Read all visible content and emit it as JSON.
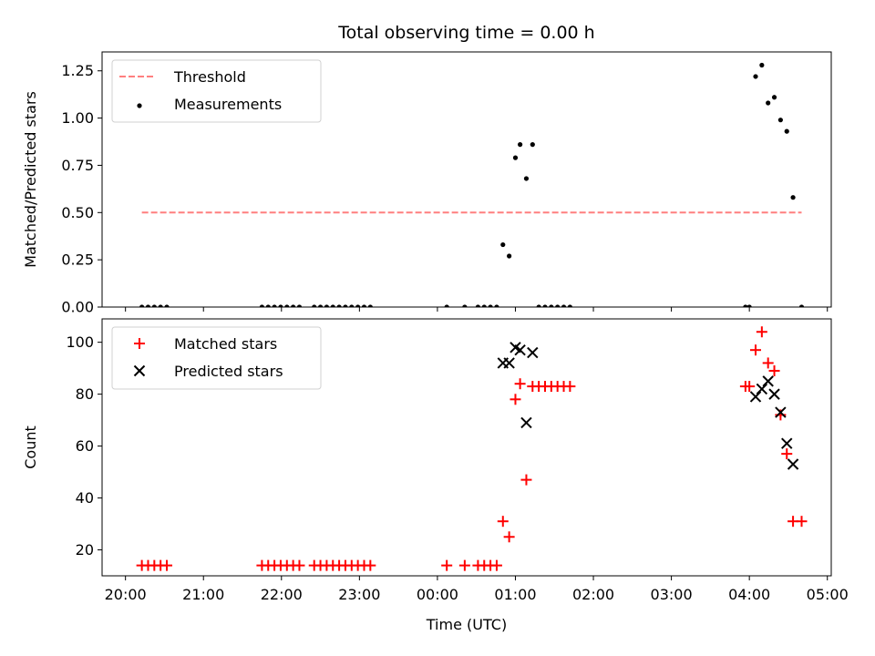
{
  "chart_data": [
    {
      "type": "scatter",
      "title": "Total observing time = 0.00 h",
      "xlabel": "",
      "ylabel": "Matched/Predicted stars",
      "xaxis_kind": "time-of-day (UTC), hours since 20:00",
      "xlim": [
        -0.3,
        9.05
      ],
      "ylim": [
        0,
        1.35
      ],
      "yticks": [
        0.0,
        0.25,
        0.5,
        0.75,
        1.0,
        1.25
      ],
      "ytick_labels": [
        "0.00",
        "0.25",
        "0.50",
        "0.75",
        "1.00",
        "1.25"
      ],
      "xticks": [
        0,
        1,
        2,
        3,
        4,
        5,
        6,
        7,
        8,
        9
      ],
      "grid": false,
      "legend_position": "top-left",
      "series": [
        {
          "name": "Threshold",
          "style": "dashed-line",
          "color": "#ff7f7f",
          "x": [
            0.21,
            8.67
          ],
          "y": [
            0.5,
            0.5
          ]
        },
        {
          "name": "Measurements",
          "style": "dot",
          "color": "#000000",
          "points": [
            [
              0.21,
              0
            ],
            [
              0.29,
              0
            ],
            [
              0.37,
              0
            ],
            [
              0.45,
              0
            ],
            [
              0.53,
              0
            ],
            [
              1.75,
              0
            ],
            [
              1.83,
              0
            ],
            [
              1.91,
              0
            ],
            [
              1.99,
              0
            ],
            [
              2.07,
              0
            ],
            [
              2.15,
              0
            ],
            [
              2.23,
              0
            ],
            [
              2.42,
              0
            ],
            [
              2.5,
              0
            ],
            [
              2.58,
              0
            ],
            [
              2.66,
              0
            ],
            [
              2.74,
              0
            ],
            [
              2.82,
              0
            ],
            [
              2.9,
              0
            ],
            [
              2.98,
              0
            ],
            [
              3.06,
              0
            ],
            [
              3.14,
              0
            ],
            [
              4.12,
              0
            ],
            [
              4.35,
              0
            ],
            [
              4.52,
              0
            ],
            [
              4.6,
              0
            ],
            [
              4.68,
              0
            ],
            [
              4.76,
              0
            ],
            [
              4.84,
              0.33
            ],
            [
              4.92,
              0.27
            ],
            [
              5.0,
              0.79
            ],
            [
              5.06,
              0.86
            ],
            [
              5.14,
              0.68
            ],
            [
              5.22,
              0.86
            ],
            [
              5.3,
              0
            ],
            [
              5.38,
              0
            ],
            [
              5.46,
              0
            ],
            [
              5.54,
              0
            ],
            [
              5.62,
              0
            ],
            [
              5.7,
              0
            ],
            [
              7.95,
              0
            ],
            [
              8.0,
              0
            ],
            [
              8.08,
              1.22
            ],
            [
              8.16,
              1.28
            ],
            [
              8.24,
              1.08
            ],
            [
              8.32,
              1.11
            ],
            [
              8.4,
              0.99
            ],
            [
              8.48,
              0.93
            ],
            [
              8.56,
              0.58
            ],
            [
              8.67,
              0
            ]
          ]
        }
      ]
    },
    {
      "type": "scatter",
      "title": "",
      "xlabel": "Time (UTC)",
      "ylabel": "Count",
      "xlim": [
        -0.3,
        9.05
      ],
      "ylim": [
        10,
        109
      ],
      "yticks": [
        20,
        40,
        60,
        80,
        100
      ],
      "ytick_labels": [
        "20",
        "40",
        "60",
        "80",
        "100"
      ],
      "xticks": [
        0,
        1,
        2,
        3,
        4,
        5,
        6,
        7,
        8,
        9
      ],
      "xtick_labels": [
        "20:00",
        "21:00",
        "22:00",
        "23:00",
        "00:00",
        "01:00",
        "02:00",
        "03:00",
        "04:00",
        "05:00"
      ],
      "grid": false,
      "legend_position": "top-left",
      "series": [
        {
          "name": "Matched stars",
          "style": "plus",
          "color": "#ff0000",
          "points": [
            [
              0.21,
              14
            ],
            [
              0.29,
              14
            ],
            [
              0.37,
              14
            ],
            [
              0.45,
              14
            ],
            [
              0.53,
              14
            ],
            [
              1.75,
              14
            ],
            [
              1.83,
              14
            ],
            [
              1.91,
              14
            ],
            [
              1.99,
              14
            ],
            [
              2.07,
              14
            ],
            [
              2.15,
              14
            ],
            [
              2.23,
              14
            ],
            [
              2.42,
              14
            ],
            [
              2.5,
              14
            ],
            [
              2.58,
              14
            ],
            [
              2.66,
              14
            ],
            [
              2.74,
              14
            ],
            [
              2.82,
              14
            ],
            [
              2.9,
              14
            ],
            [
              2.98,
              14
            ],
            [
              3.06,
              14
            ],
            [
              3.14,
              14
            ],
            [
              4.12,
              14
            ],
            [
              4.35,
              14
            ],
            [
              4.52,
              14
            ],
            [
              4.6,
              14
            ],
            [
              4.68,
              14
            ],
            [
              4.76,
              14
            ],
            [
              4.84,
              31
            ],
            [
              4.92,
              25
            ],
            [
              5.0,
              78
            ],
            [
              5.06,
              84
            ],
            [
              5.14,
              47
            ],
            [
              5.22,
              83
            ],
            [
              5.3,
              83
            ],
            [
              5.38,
              83
            ],
            [
              5.46,
              83
            ],
            [
              5.54,
              83
            ],
            [
              5.62,
              83
            ],
            [
              5.7,
              83
            ],
            [
              7.95,
              83
            ],
            [
              8.0,
              83
            ],
            [
              8.08,
              97
            ],
            [
              8.16,
              104
            ],
            [
              8.24,
              92
            ],
            [
              8.32,
              89
            ],
            [
              8.4,
              72
            ],
            [
              8.48,
              57
            ],
            [
              8.56,
              31
            ],
            [
              8.67,
              31
            ]
          ]
        },
        {
          "name": "Predicted stars",
          "style": "x",
          "color": "#000000",
          "points": [
            [
              4.84,
              92
            ],
            [
              4.92,
              92
            ],
            [
              5.0,
              98
            ],
            [
              5.06,
              97
            ],
            [
              5.14,
              69
            ],
            [
              5.22,
              96
            ],
            [
              8.08,
              79
            ],
            [
              8.16,
              82
            ],
            [
              8.24,
              85
            ],
            [
              8.32,
              80
            ],
            [
              8.4,
              73
            ],
            [
              8.48,
              61
            ],
            [
              8.56,
              53
            ]
          ]
        }
      ]
    }
  ]
}
